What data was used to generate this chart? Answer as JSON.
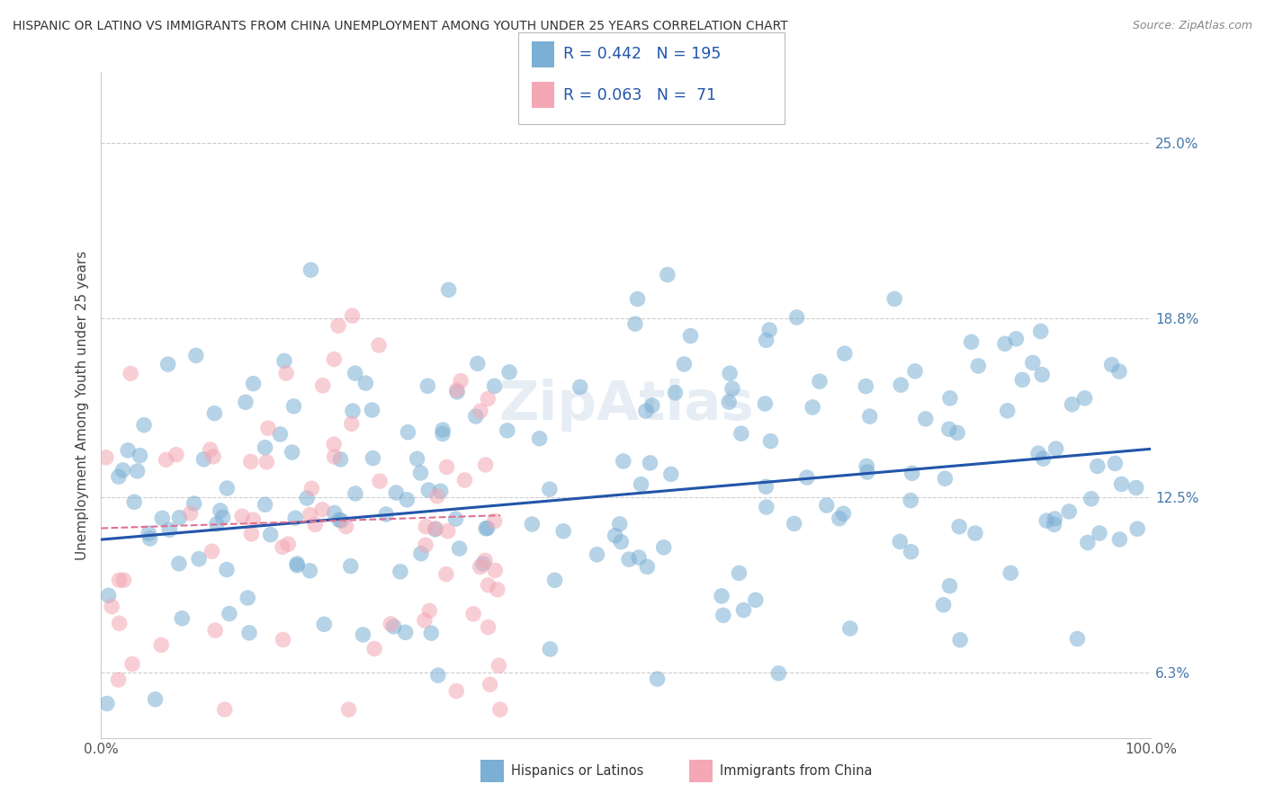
{
  "title": "HISPANIC OR LATINO VS IMMIGRANTS FROM CHINA UNEMPLOYMENT AMONG YOUTH UNDER 25 YEARS CORRELATION CHART",
  "source": "Source: ZipAtlas.com",
  "ylabel": "Unemployment Among Youth under 25 years",
  "xlim": [
    0,
    100
  ],
  "ylim": [
    4.0,
    27.5
  ],
  "yticks": [
    6.3,
    12.5,
    18.8,
    25.0
  ],
  "xtick_labels": [
    "0.0%",
    "100.0%"
  ],
  "ytick_labels": [
    "6.3%",
    "12.5%",
    "18.8%",
    "25.0%"
  ],
  "blue_color": "#7BAFD4",
  "pink_color": "#F4A7B4",
  "blue_line_color": "#2255AA",
  "pink_line_color": "#E07090",
  "legend_R_blue": "0.442",
  "legend_N_blue": "195",
  "legend_R_pink": "0.063",
  "legend_N_pink": "71",
  "watermark": "ZipAtlas",
  "seed": 42,
  "n_blue": 195,
  "n_pink": 71,
  "blue_slope": 0.032,
  "blue_intercept": 11.0,
  "pink_slope": 0.012,
  "pink_intercept": 11.4,
  "pink_x_max": 38,
  "background_color": "#FFFFFF",
  "grid_color": "#CCCCCC",
  "axis_label_color": "#4477AA",
  "title_color": "#333333"
}
